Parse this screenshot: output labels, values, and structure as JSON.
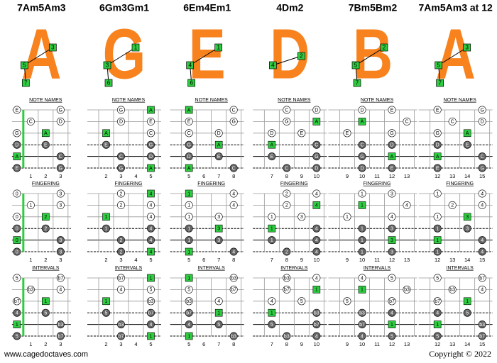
{
  "sections": [
    "NOTE NAMES",
    "FINGERING",
    "INTERVALS"
  ],
  "footer": {
    "left": "www.cagedoctaves.com",
    "right": "Copyright © 2022"
  },
  "columns": [
    {
      "title": "7Am5Am3",
      "shape": "A",
      "shape_numbers": [
        3,
        5,
        7
      ],
      "frets": [
        1,
        2,
        3
      ],
      "dots": [
        {
          "string": 1,
          "fret": 0,
          "note": "E",
          "finger": 0,
          "interval": "5"
        },
        {
          "string": 1,
          "fret": 3,
          "note": "G",
          "finger": 3,
          "interval": "b7"
        },
        {
          "string": 2,
          "fret": 1,
          "note": "C",
          "finger": 1,
          "interval": "b3"
        },
        {
          "string": 2,
          "fret": 3,
          "note": "D",
          "finger": 3,
          "interval": "4"
        },
        {
          "string": 3,
          "fret": 0,
          "note": "G",
          "finger": 0,
          "interval": "b7"
        },
        {
          "string": 3,
          "fret": 2,
          "note": "A",
          "finger": 2,
          "interval": "1"
        },
        {
          "string": 4,
          "fret": 0,
          "note": "D",
          "finger": 0,
          "interval": "4"
        },
        {
          "string": 4,
          "fret": 2,
          "note": "E",
          "finger": 2,
          "interval": "5"
        },
        {
          "string": 5,
          "fret": 0,
          "note": "A",
          "finger": 0,
          "interval": "1"
        },
        {
          "string": 5,
          "fret": 3,
          "note": "C",
          "finger": 3,
          "interval": "b3"
        },
        {
          "string": 6,
          "fret": 0,
          "note": "E",
          "finger": 0,
          "interval": "5"
        },
        {
          "string": 6,
          "fret": 3,
          "note": "G",
          "finger": 3,
          "interval": "b7"
        }
      ]
    },
    {
      "title": "6Gm3Gm1",
      "shape": "G",
      "shape_numbers": [
        1,
        3,
        6
      ],
      "frets": [
        2,
        3,
        4,
        5
      ],
      "dots": [
        {
          "string": 1,
          "fret": 3,
          "note": "G",
          "finger": 2,
          "interval": "b7"
        },
        {
          "string": 1,
          "fret": 5,
          "note": "A",
          "finger": 4,
          "interval": "1"
        },
        {
          "string": 2,
          "fret": 3,
          "note": "D",
          "finger": 2,
          "interval": "4"
        },
        {
          "string": 2,
          "fret": 5,
          "note": "E",
          "finger": 4,
          "interval": "5"
        },
        {
          "string": 3,
          "fret": 2,
          "note": "A",
          "finger": 1,
          "interval": "1"
        },
        {
          "string": 3,
          "fret": 5,
          "note": "C",
          "finger": 4,
          "interval": "b3"
        },
        {
          "string": 4,
          "fret": 2,
          "note": "E",
          "finger": 1,
          "interval": "5"
        },
        {
          "string": 4,
          "fret": 5,
          "note": "G",
          "finger": 4,
          "interval": "b7"
        },
        {
          "string": 5,
          "fret": 3,
          "note": "C",
          "finger": 2,
          "interval": "b3"
        },
        {
          "string": 5,
          "fret": 5,
          "note": "D",
          "finger": 4,
          "interval": "4"
        },
        {
          "string": 6,
          "fret": 3,
          "note": "G",
          "finger": 2,
          "interval": "b7"
        },
        {
          "string": 6,
          "fret": 5,
          "note": "A",
          "finger": 4,
          "interval": "1"
        }
      ]
    },
    {
      "title": "6Em4Em1",
      "shape": "E",
      "shape_numbers": [
        1,
        4,
        6
      ],
      "frets": [
        5,
        6,
        7,
        8
      ],
      "dots": [
        {
          "string": 1,
          "fret": 5,
          "note": "A",
          "finger": 1,
          "interval": "1"
        },
        {
          "string": 1,
          "fret": 8,
          "note": "C",
          "finger": 4,
          "interval": "b3"
        },
        {
          "string": 2,
          "fret": 5,
          "note": "E",
          "finger": 1,
          "interval": "5"
        },
        {
          "string": 2,
          "fret": 8,
          "note": "G",
          "finger": 4,
          "interval": "b7"
        },
        {
          "string": 3,
          "fret": 5,
          "note": "C",
          "finger": 1,
          "interval": "b3"
        },
        {
          "string": 3,
          "fret": 7,
          "note": "D",
          "finger": 3,
          "interval": "4"
        },
        {
          "string": 4,
          "fret": 5,
          "note": "G",
          "finger": 1,
          "interval": "b7"
        },
        {
          "string": 4,
          "fret": 7,
          "note": "A",
          "finger": 3,
          "interval": "1"
        },
        {
          "string": 5,
          "fret": 5,
          "note": "D",
          "finger": 1,
          "interval": "4"
        },
        {
          "string": 5,
          "fret": 7,
          "note": "E",
          "finger": 3,
          "interval": "5"
        },
        {
          "string": 6,
          "fret": 5,
          "note": "A",
          "finger": 1,
          "interval": "1"
        },
        {
          "string": 6,
          "fret": 8,
          "note": "C",
          "finger": 4,
          "interval": "b3"
        }
      ]
    },
    {
      "title": "4Dm2",
      "shape": "D",
      "shape_numbers": [
        2,
        4
      ],
      "frets": [
        7,
        8,
        9,
        10
      ],
      "dots": [
        {
          "string": 1,
          "fret": 8,
          "note": "C",
          "finger": 2,
          "interval": "b3"
        },
        {
          "string": 1,
          "fret": 10,
          "note": "D",
          "finger": 4,
          "interval": "4"
        },
        {
          "string": 2,
          "fret": 8,
          "note": "G",
          "finger": 2,
          "interval": "b7"
        },
        {
          "string": 2,
          "fret": 10,
          "note": "A",
          "finger": 4,
          "interval": "1"
        },
        {
          "string": 3,
          "fret": 7,
          "note": "D",
          "finger": 1,
          "interval": "4"
        },
        {
          "string": 3,
          "fret": 9,
          "note": "E",
          "finger": 3,
          "interval": "5"
        },
        {
          "string": 4,
          "fret": 7,
          "note": "A",
          "finger": 1,
          "interval": "1"
        },
        {
          "string": 4,
          "fret": 10,
          "note": "C",
          "finger": 4,
          "interval": "b3"
        },
        {
          "string": 5,
          "fret": 7,
          "note": "E",
          "finger": 1,
          "interval": "5"
        },
        {
          "string": 5,
          "fret": 10,
          "note": "G",
          "finger": 4,
          "interval": "b7"
        },
        {
          "string": 6,
          "fret": 8,
          "note": "C",
          "finger": 2,
          "interval": "b3"
        },
        {
          "string": 6,
          "fret": 10,
          "note": "D",
          "finger": 4,
          "interval": "4"
        }
      ]
    },
    {
      "title": "7Bm5Bm2",
      "shape": "B",
      "shape_numbers": [
        2,
        5,
        7
      ],
      "frets": [
        9,
        10,
        11,
        12,
        13
      ],
      "dots": [
        {
          "string": 1,
          "fret": 10,
          "note": "D",
          "finger": 1,
          "interval": "4"
        },
        {
          "string": 1,
          "fret": 12,
          "note": "E",
          "finger": 3,
          "interval": "5"
        },
        {
          "string": 2,
          "fret": 10,
          "note": "A",
          "finger": 1,
          "interval": "1"
        },
        {
          "string": 2,
          "fret": 13,
          "note": "C",
          "finger": 4,
          "interval": "b3"
        },
        {
          "string": 3,
          "fret": 9,
          "note": "E",
          "finger": 1,
          "interval": "5"
        },
        {
          "string": 3,
          "fret": 12,
          "note": "G",
          "finger": 4,
          "interval": "b7"
        },
        {
          "string": 4,
          "fret": 10,
          "note": "C",
          "finger": 1,
          "interval": "b3"
        },
        {
          "string": 4,
          "fret": 12,
          "note": "D",
          "finger": 3,
          "interval": "4"
        },
        {
          "string": 5,
          "fret": 10,
          "note": "G",
          "finger": 1,
          "interval": "b7"
        },
        {
          "string": 5,
          "fret": 12,
          "note": "A",
          "finger": 3,
          "interval": "1"
        },
        {
          "string": 6,
          "fret": 10,
          "note": "D",
          "finger": 1,
          "interval": "4"
        },
        {
          "string": 6,
          "fret": 12,
          "note": "E",
          "finger": 3,
          "interval": "5"
        }
      ]
    },
    {
      "title": "7Am5Am3 at 12",
      "shape": "A",
      "shape_numbers": [
        3,
        5,
        7
      ],
      "frets": [
        12,
        13,
        14,
        15
      ],
      "dots": [
        {
          "string": 1,
          "fret": 12,
          "note": "E",
          "finger": 1,
          "interval": "5"
        },
        {
          "string": 1,
          "fret": 15,
          "note": "G",
          "finger": 4,
          "interval": "b7"
        },
        {
          "string": 2,
          "fret": 13,
          "note": "C",
          "finger": 2,
          "interval": "b3"
        },
        {
          "string": 2,
          "fret": 15,
          "note": "D",
          "finger": 4,
          "interval": "4"
        },
        {
          "string": 3,
          "fret": 12,
          "note": "G",
          "finger": 1,
          "interval": "b7"
        },
        {
          "string": 3,
          "fret": 14,
          "note": "A",
          "finger": 3,
          "interval": "1"
        },
        {
          "string": 4,
          "fret": 12,
          "note": "D",
          "finger": 1,
          "interval": "4"
        },
        {
          "string": 4,
          "fret": 14,
          "note": "E",
          "finger": 3,
          "interval": "5"
        },
        {
          "string": 5,
          "fret": 12,
          "note": "A",
          "finger": 1,
          "interval": "1"
        },
        {
          "string": 5,
          "fret": 15,
          "note": "C",
          "finger": 4,
          "interval": "b3"
        },
        {
          "string": 6,
          "fret": 12,
          "note": "E",
          "finger": 1,
          "interval": "5"
        },
        {
          "string": 6,
          "fret": 15,
          "note": "G",
          "finger": 4,
          "interval": "b7"
        }
      ]
    }
  ]
}
